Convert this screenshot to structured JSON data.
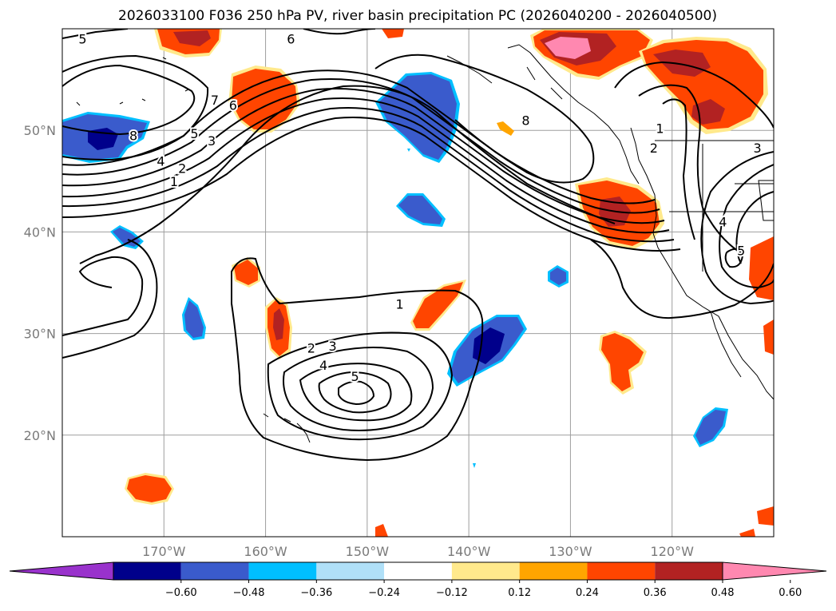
{
  "title": "2026033100 F036 250 hPa PV, river basin precipitation PC (2026040200 - 2026040500)",
  "map_extent": {
    "lon_min": -180,
    "lon_max": -110,
    "lat_min": 10,
    "lat_max": 60
  },
  "lat_ticks": [
    {
      "value": 20,
      "label": "20°N"
    },
    {
      "value": 30,
      "label": "30°N"
    },
    {
      "value": 40,
      "label": "40°N"
    },
    {
      "value": 50,
      "label": "50°N"
    }
  ],
  "lon_ticks": [
    {
      "value": -170,
      "label": "170°W"
    },
    {
      "value": -160,
      "label": "160°W"
    },
    {
      "value": -150,
      "label": "150°W"
    },
    {
      "value": -140,
      "label": "140°W"
    },
    {
      "value": -130,
      "label": "130°W"
    },
    {
      "value": -120,
      "label": "120°W"
    }
  ],
  "colorbar": {
    "colors": [
      "#9932cc",
      "#00008b",
      "#3a5bcc",
      "#00bfff",
      "#b0e0f8",
      "#ffffff",
      "#ffe98c",
      "#ffa500",
      "#ff4500",
      "#b22222",
      "#ff88b0"
    ],
    "labels": [
      "−0.60",
      "−0.48",
      "−0.36",
      "−0.24",
      "−0.12",
      "0.12",
      "0.24",
      "0.36",
      "0.48",
      "0.60"
    ]
  },
  "contour_labels": [
    {
      "text": "5",
      "lon": -178,
      "lat": 59
    },
    {
      "text": "6",
      "lon": -157.5,
      "lat": 59
    },
    {
      "text": "8",
      "lon": -173,
      "lat": 49.5
    },
    {
      "text": "7",
      "lon": -165,
      "lat": 53
    },
    {
      "text": "6",
      "lon": -163.2,
      "lat": 52.5
    },
    {
      "text": "5",
      "lon": -167,
      "lat": 49.7
    },
    {
      "text": "3",
      "lon": -165.3,
      "lat": 49
    },
    {
      "text": "4",
      "lon": -170.3,
      "lat": 47
    },
    {
      "text": "2",
      "lon": -168.2,
      "lat": 46.3
    },
    {
      "text": "1",
      "lon": -169,
      "lat": 45
    },
    {
      "text": "8",
      "lon": -134.4,
      "lat": 51
    },
    {
      "text": "1",
      "lon": -121.2,
      "lat": 50.2
    },
    {
      "text": "2",
      "lon": -121.8,
      "lat": 48.3
    },
    {
      "text": "3",
      "lon": -111.6,
      "lat": 48.3
    },
    {
      "text": "4",
      "lon": -115,
      "lat": 41
    },
    {
      "text": "5",
      "lon": -113.2,
      "lat": 38.2
    },
    {
      "text": "1",
      "lon": -146.8,
      "lat": 32.9
    },
    {
      "text": "2",
      "lon": -155.5,
      "lat": 28.6
    },
    {
      "text": "3",
      "lon": -153.4,
      "lat": 28.8
    },
    {
      "text": "4",
      "lon": -154.3,
      "lat": 26.9
    },
    {
      "text": "5",
      "lon": -151.2,
      "lat": 25.8
    }
  ]
}
